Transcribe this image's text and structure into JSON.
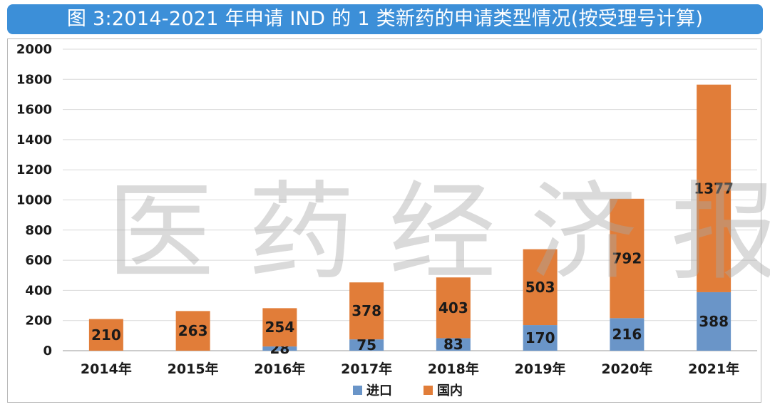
{
  "title": "图 3:2014-2021 年申请 IND 的 1 类新药的申请类型情况(按受理号计算)",
  "watermark": "医 药 经 济 报",
  "chart_data": {
    "type": "bar",
    "stacked": true,
    "categories": [
      "2014年",
      "2015年",
      "2016年",
      "2017年",
      "2018年",
      "2019年",
      "2020年",
      "2021年"
    ],
    "series": [
      {
        "name": "进口",
        "color": "#6a95c8",
        "values": [
          0,
          0,
          28,
          75,
          83,
          170,
          216,
          388
        ],
        "labels": [
          "",
          "",
          "28",
          "75",
          "83",
          "170",
          "216",
          "388"
        ]
      },
      {
        "name": "国内",
        "color": "#e17d39",
        "values": [
          210,
          263,
          254,
          378,
          403,
          503,
          792,
          1377
        ],
        "labels": [
          "210",
          "263",
          "254",
          "378",
          "403",
          "503",
          "792",
          "1377"
        ]
      }
    ],
    "ylim": [
      0,
      2000
    ],
    "yticks": [
      "0",
      "200",
      "400",
      "600",
      "800",
      "1000",
      "1200",
      "1400",
      "1600",
      "1800",
      "2000"
    ],
    "grid": true,
    "legend": "bottom"
  }
}
